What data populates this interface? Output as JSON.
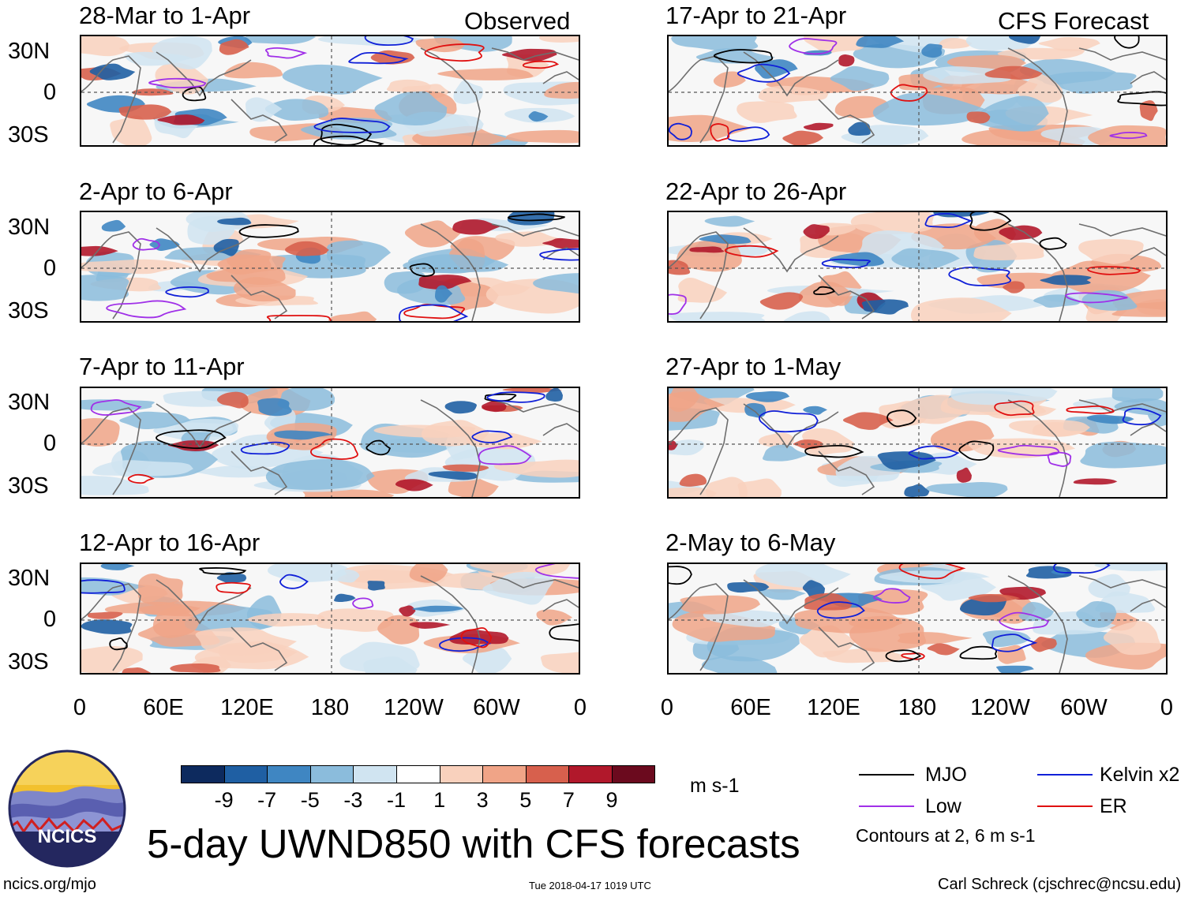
{
  "left_header": "Observed",
  "right_header": "CFS Forecast",
  "observed_panels": [
    {
      "period": "28-Mar to 1-Apr"
    },
    {
      "period": "2-Apr to 6-Apr"
    },
    {
      "period": "7-Apr to 11-Apr"
    },
    {
      "period": "12-Apr to 16-Apr"
    }
  ],
  "forecast_panels": [
    {
      "period": "17-Apr to 21-Apr"
    },
    {
      "period": "22-Apr to 26-Apr"
    },
    {
      "period": "27-Apr to 1-May"
    },
    {
      "period": "2-May to 6-May"
    }
  ],
  "lat_labels": [
    "30N",
    "0",
    "30S"
  ],
  "lon_labels": [
    "0",
    "60E",
    "120E",
    "180",
    "120W",
    "60W",
    "0"
  ],
  "colorbar": {
    "ticks": [
      "-9",
      "-7",
      "-5",
      "-3",
      "-1",
      "1",
      "3",
      "5",
      "7",
      "9"
    ],
    "colors": [
      "#0d2a5e",
      "#1f5fa3",
      "#3f86c2",
      "#8bbcdc",
      "#d0e4f1",
      "#ffffff",
      "#f9d1bd",
      "#f0a487",
      "#d7604d",
      "#b1182b",
      "#6b0a1e"
    ],
    "units": "m s-1"
  },
  "legend": {
    "items": [
      {
        "label": "MJO",
        "color": "#000000"
      },
      {
        "label": "Kelvin x2",
        "color": "#1020d8"
      },
      {
        "label": "Low",
        "color": "#a030e8"
      },
      {
        "label": "ER",
        "color": "#e01010"
      }
    ],
    "note": "Contours at 2, 6 m s-1"
  },
  "logo_text": "NCICS",
  "main_title": "5-day UWND850 with CFS forecasts",
  "footer": {
    "left": "ncics.org/mjo",
    "center": "Tue 2018-04-17 1019 UTC",
    "right": "Carl Schreck (cjschrec@ncsu.edu)"
  }
}
